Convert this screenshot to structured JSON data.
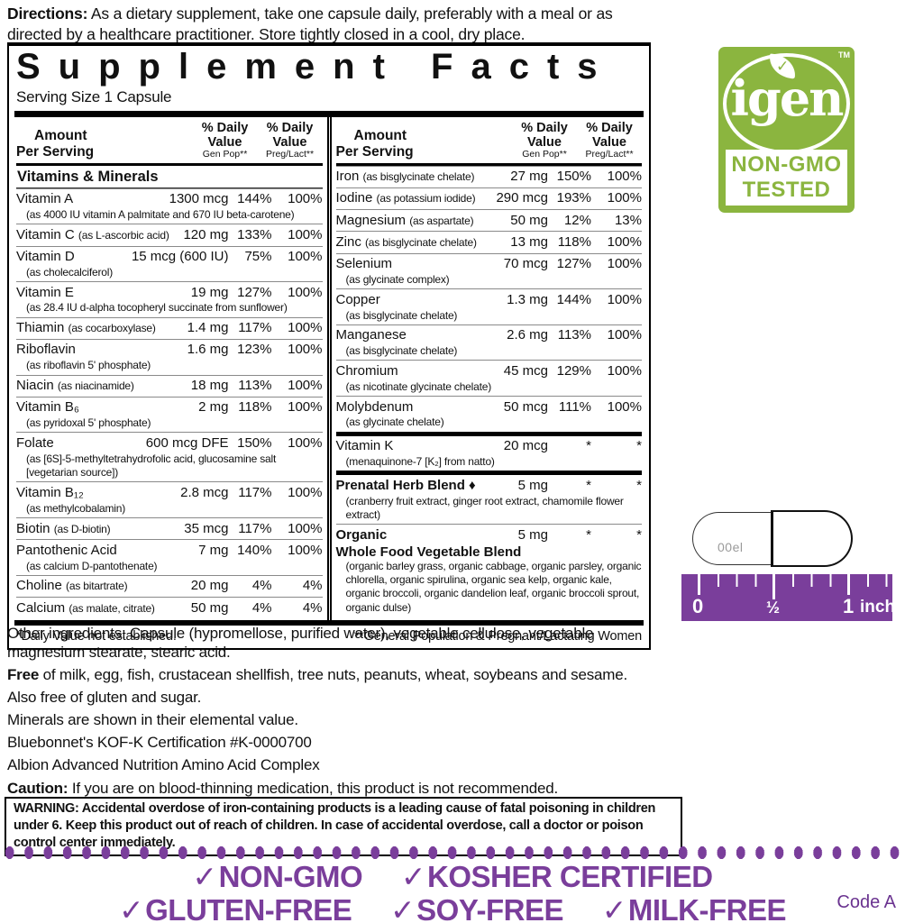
{
  "colors": {
    "purple": "#7a3e9b",
    "green": "#8bb53f"
  },
  "directions": {
    "label": "Directions:",
    "text": " As a dietary supplement, take one capsule daily, preferably with a meal or as directed by a healthcare practitioner. Store tightly closed in a cool, dry place."
  },
  "supplement_facts": {
    "title": "Supplement Facts",
    "serving": "Serving Size 1 Capsule",
    "col_head": {
      "amount": "Amount",
      "per_serving": "Per Serving",
      "dv": "% Daily",
      "value": "Value",
      "gen_pop": "Gen Pop**",
      "preg": "Preg/Lact**"
    },
    "left_heading": "Vitamins & Minerals",
    "left_rows": [
      {
        "name": "Vitamin A",
        "amount": "1300 mcg",
        "dv1": "144%",
        "dv2": "100%",
        "note": "(as 4000 IU vitamin A palmitate and 670 IU beta-carotene)"
      },
      {
        "name": "Vitamin C",
        "paren": "(as L-ascorbic acid)",
        "amount": "120 mg",
        "dv1": "133%",
        "dv2": "100%"
      },
      {
        "name": "Vitamin D",
        "amount": "15 mcg (600 IU)",
        "dv1": "75%",
        "dv2": "100%",
        "note": "(as cholecalciferol)"
      },
      {
        "name": "Vitamin E",
        "amount": "19 mg",
        "dv1": "127%",
        "dv2": "100%",
        "note": "(as 28.4 IU d-alpha tocopheryl succinate from sunflower)"
      },
      {
        "name": "Thiamin",
        "paren": "(as cocarboxylase)",
        "amount": "1.4 mg",
        "dv1": "117%",
        "dv2": "100%"
      },
      {
        "name": "Riboflavin",
        "amount": "1.6 mg",
        "dv1": "123%",
        "dv2": "100%",
        "note": "(as riboflavin 5' phosphate)"
      },
      {
        "name": "Niacin",
        "paren": "(as niacinamide)",
        "amount": "18 mg",
        "dv1": "113%",
        "dv2": "100%"
      },
      {
        "name": "Vitamin B₆",
        "amount": "2 mg",
        "dv1": "118%",
        "dv2": "100%",
        "note": "(as pyridoxal 5' phosphate)"
      },
      {
        "name": "Folate",
        "amount": "600 mcg DFE",
        "dv1": "150%",
        "dv2": "100%",
        "note": "(as [6S]-5-methyltetrahydrofolic acid, glucosamine salt [vegetarian source])"
      },
      {
        "name": "Vitamin B₁₂",
        "amount": "2.8 mcg",
        "dv1": "117%",
        "dv2": "100%",
        "note": "(as methylcobalamin)"
      },
      {
        "name": "Biotin",
        "paren": "(as D-biotin)",
        "amount": "35 mcg",
        "dv1": "117%",
        "dv2": "100%"
      },
      {
        "name": "Pantothenic Acid",
        "amount": "7 mg",
        "dv1": "140%",
        "dv2": "100%",
        "note": "(as calcium D-pantothenate)"
      },
      {
        "name": "Choline",
        "paren": "(as bitartrate)",
        "amount": "20 mg",
        "dv1": "4%",
        "dv2": "4%"
      },
      {
        "name": "Calcium",
        "paren": "(as malate, citrate)",
        "amount": "50 mg",
        "dv1": "4%",
        "dv2": "4%"
      }
    ],
    "right_rows": [
      {
        "name": "Iron",
        "paren": "(as bisglycinate chelate)",
        "amount": "27 mg",
        "dv1": "150%",
        "dv2": "100%"
      },
      {
        "name": "Iodine",
        "paren": "(as potassium iodide)",
        "amount": "290 mcg",
        "dv1": "193%",
        "dv2": "100%"
      },
      {
        "name": "Magnesium",
        "paren": "(as aspartate)",
        "amount": "50 mg",
        "dv1": "12%",
        "dv2": "13%"
      },
      {
        "name": "Zinc",
        "paren": "(as bisglycinate chelate)",
        "amount": "13 mg",
        "dv1": "118%",
        "dv2": "100%"
      },
      {
        "name": "Selenium",
        "amount": "70 mcg",
        "dv1": "127%",
        "dv2": "100%",
        "note": "(as glycinate complex)"
      },
      {
        "name": "Copper",
        "amount": "1.3 mg",
        "dv1": "144%",
        "dv2": "100%",
        "note": "(as bisglycinate chelate)"
      },
      {
        "name": "Manganese",
        "amount": "2.6 mg",
        "dv1": "113%",
        "dv2": "100%",
        "note": "(as bisglycinate chelate)"
      },
      {
        "name": "Chromium",
        "amount": "45 mcg",
        "dv1": "129%",
        "dv2": "100%",
        "note": "(as nicotinate glycinate chelate)"
      },
      {
        "name": "Molybdenum",
        "amount": "50 mcg",
        "dv1": "111%",
        "dv2": "100%",
        "note": "(as glycinate chelate)"
      },
      {
        "name": "Vitamin K",
        "amount": "20 mcg",
        "dv1": "*",
        "dv2": "*",
        "note": "(menaquinone-7 [K₂] from natto)",
        "cls": "sep-thick"
      },
      {
        "name": "Prenatal Herb Blend ♦",
        "amount": "5 mg",
        "dv1": "*",
        "dv2": "*",
        "note": "(cranberry fruit extract, ginger root extract, chamomile flower extract)",
        "cls": "sep-thick bold"
      },
      {
        "name": "Organic",
        "name2": "Whole Food Vegetable Blend",
        "amount": "5 mg",
        "dv1": "*",
        "dv2": "*",
        "note": "(organic barley grass, organic cabbage, organic parsley, organic chlorella, organic spirulina, organic sea kelp, organic kale, organic broccoli, organic dandelion leaf, organic broccoli sprout, organic dulse)",
        "cls": "bold"
      }
    ],
    "foot_left": "*Daily Value not established.",
    "foot_right": "**General Population & Pregnant/Lactating Women"
  },
  "paragraphs": [
    {
      "lead": "",
      "text": "Other ingredients: Capsule (hypromellose, purified water), vegetable cellulose, vegetable magnesium stearate, stearic acid."
    },
    {
      "lead": "Free",
      "text": " of milk, egg, fish, crustacean shellfish, tree nuts, peanuts, wheat, soybeans and sesame."
    },
    {
      "lead": "",
      "text": "Also free of gluten and sugar."
    },
    {
      "lead": "",
      "text": "Minerals are shown in their elemental value."
    },
    {
      "lead": "",
      "text": "Bluebonnet's KOF-K Certification #K-0000700"
    },
    {
      "lead": "",
      "text": "Albion Advanced Nutrition Amino Acid Complex"
    },
    {
      "lead": "Caution:",
      "text": " If you are on blood-thinning medication, this product is not recommended."
    }
  ],
  "warning": {
    "lead": "WARNING:",
    "text": " Accidental overdose of iron-containing products is a leading cause of fatal poisoning in children under 6. Keep this product out of reach of children. In case of accidental overdose, call a doctor or poison control center immediately."
  },
  "badges": {
    "check": "✓",
    "row1": [
      "NON-GMO",
      "KOSHER CERTIFIED"
    ],
    "row2": [
      "GLUTEN-FREE",
      "SOY-FREE",
      "MILK-FREE"
    ],
    "code": "Code A"
  },
  "igen": {
    "brand": "igen",
    "tm": "TM",
    "check": "✓",
    "line1": "NON-GMO",
    "line2": "TESTED"
  },
  "capsule": {
    "imprint": "00el"
  },
  "ruler": {
    "zero": "0",
    "half": "½",
    "one": "1",
    "unit": "inch"
  }
}
